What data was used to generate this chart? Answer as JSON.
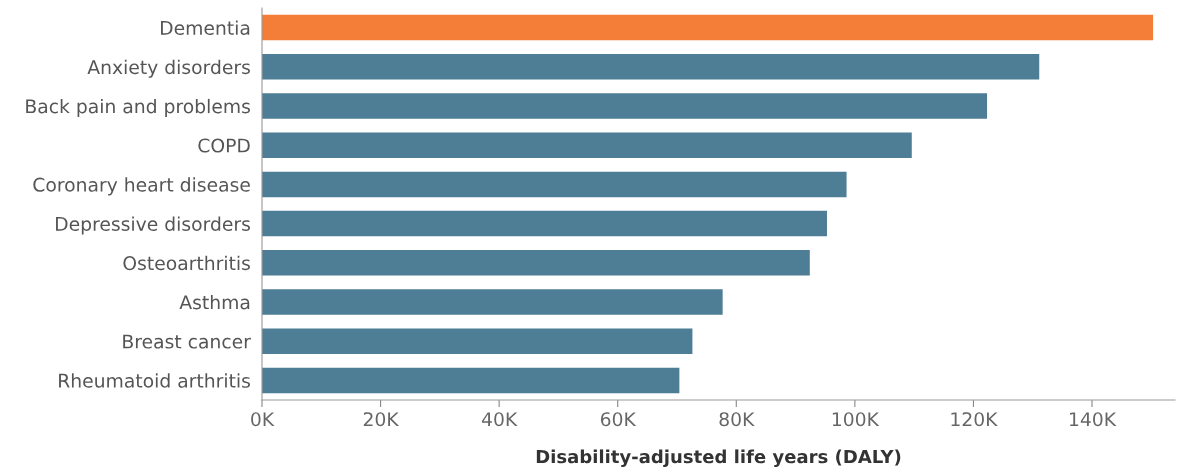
{
  "chart_data": {
    "type": "bar",
    "orientation": "horizontal",
    "categories": [
      "Dementia",
      "Anxiety disorders",
      "Back pain and problems",
      "COPD",
      "Coronary heart disease",
      "Depressive disorders",
      "Osteoarthritis",
      "Asthma",
      "Breast cancer",
      "Rheumatoid arthritis"
    ],
    "values": [
      150300,
      131100,
      122300,
      109600,
      98600,
      95300,
      92400,
      77700,
      72600,
      70400
    ],
    "colors": [
      "#f47d37",
      "#4e7d96",
      "#4e7d96",
      "#4e7d96",
      "#4e7d96",
      "#4e7d96",
      "#4e7d96",
      "#4e7d96",
      "#4e7d96",
      "#4e7d96"
    ],
    "xlim": [
      0,
      154000
    ],
    "xticks": [
      {
        "value": 0,
        "label": "0K"
      },
      {
        "value": 20000,
        "label": "20K"
      },
      {
        "value": 40000,
        "label": "40K"
      },
      {
        "value": 60000,
        "label": "60K"
      },
      {
        "value": 80000,
        "label": "80K"
      },
      {
        "value": 100000,
        "label": "100K"
      },
      {
        "value": 120000,
        "label": "120K"
      },
      {
        "value": 140000,
        "label": "140K"
      }
    ],
    "xlabel": "Disability-adjusted life years (DALY)",
    "grid": false
  }
}
